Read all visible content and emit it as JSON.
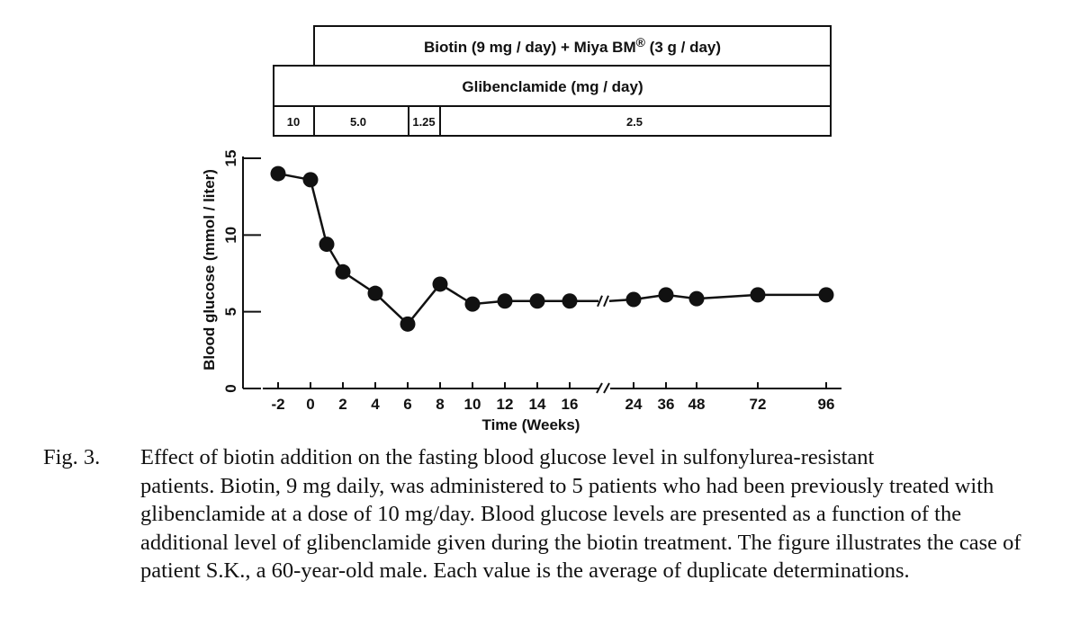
{
  "chart_data": {
    "type": "line",
    "title": "",
    "xlabel": "Time (Weeks)",
    "ylabel": "Blood glucose  (mmol / liter)",
    "ylim": [
      0,
      15
    ],
    "y_ticks": [
      "0",
      "5",
      "10",
      "15"
    ],
    "x_tick_labels": [
      "-2",
      "0",
      "2",
      "4",
      "6",
      "8",
      "10",
      "12",
      "14",
      "16",
      "24",
      "36",
      "48",
      "72",
      "96"
    ],
    "axis_break_after": "16",
    "series": [
      {
        "name": "Patient S.K.",
        "x": [
          -2,
          0,
          1,
          2,
          4,
          6,
          8,
          10,
          12,
          14,
          16,
          24,
          36,
          48,
          72,
          96
        ],
        "values": [
          14.0,
          13.6,
          9.4,
          7.6,
          6.2,
          4.2,
          6.8,
          5.5,
          5.7,
          5.7,
          5.7,
          5.8,
          6.1,
          5.85,
          6.1,
          6.1
        ]
      }
    ],
    "treatment_bars": {
      "biotin": "Biotin  (9 mg / day) + Miya BM",
      "biotin_symbol": "®",
      "biotin_suffix": " (3 g / day)",
      "glibenclamide": "Glibenclamide  (mg / day)",
      "doses": [
        "10",
        "5.0",
        "1.25",
        "2.5"
      ]
    }
  },
  "caption": {
    "label": "Fig. 3.",
    "first_line": "Effect of biotin addition on the fasting blood glucose level in sulfonylurea-resistant",
    "rest": "patients. Biotin, 9 mg daily, was administered to 5 patients who had been previously treated with glibenclamide at a dose of 10 mg/day. Blood glucose levels are presented as a function of the additional level of glibenclamide given during the biotin treatment. The figure illustrates the case of patient S.K., a 60-year-old male. Each value is the average of duplicate determinations."
  }
}
